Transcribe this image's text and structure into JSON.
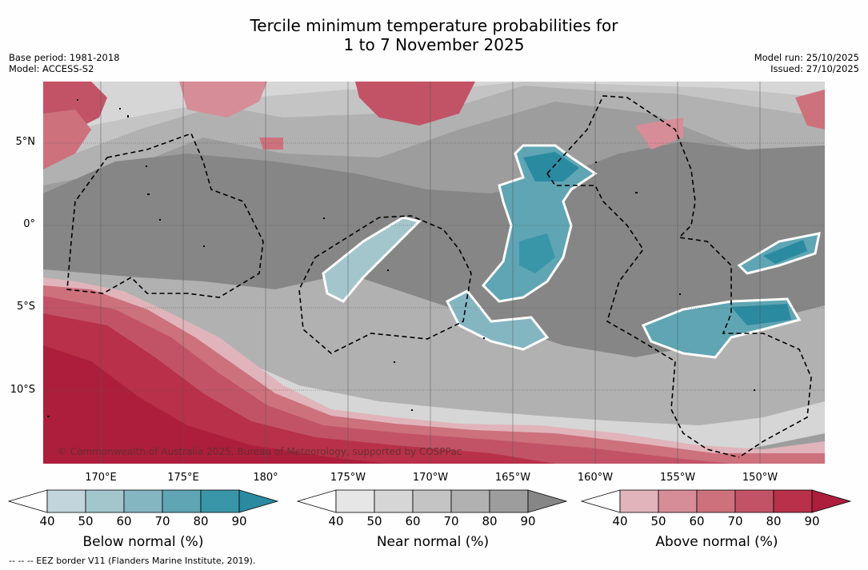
{
  "header": {
    "title_line1": "Tercile minimum temperature probabilities for",
    "title_line2": "1 to 7 November 2025",
    "base_period": "Base period: 1981-2018",
    "model": "Model: ACCESS-S2",
    "model_run": "Model run: 25/10/2025",
    "issued": "Issued: 27/10/2025"
  },
  "map": {
    "latitude_labels": [
      "5°N",
      "0°",
      "5°S",
      "10°S"
    ],
    "longitude_labels": [
      "170°E",
      "175°E",
      "180°",
      "175°W",
      "170°W",
      "165°W",
      "160°W",
      "155°W",
      "150°W"
    ],
    "credit": "© Commonwealth of Australia 2025, Bureau of Meteorology, supported by COSPPac"
  },
  "legend": {
    "ticks": [
      "40",
      "50",
      "60",
      "70",
      "80",
      "90"
    ],
    "below": {
      "label": "Below normal (%)",
      "colors": [
        "#c3d5dc",
        "#a3c6cd",
        "#84b6c2",
        "#5fa5b3",
        "#3996a8",
        "#2a8aa0"
      ]
    },
    "near": {
      "label": "Near normal (%)",
      "colors": [
        "#e6e6e6",
        "#d6d6d6",
        "#c4c4c4",
        "#b1b1b1",
        "#9d9d9d",
        "#868686"
      ]
    },
    "above": {
      "label": "Above normal (%)",
      "colors": [
        "#e0b4ba",
        "#d68d97",
        "#cd717d",
        "#c25367",
        "#b83049",
        "#ad1e3c"
      ]
    }
  },
  "footer": {
    "eez_note": "--  --  -- EEZ border V11 (Flanders Marine Institute, 2019)."
  }
}
